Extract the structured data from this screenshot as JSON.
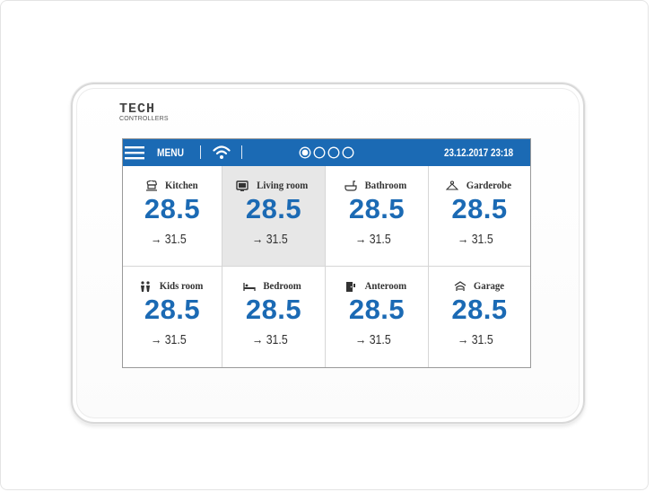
{
  "brand": {
    "word": "TECH",
    "sub": "CONTROLLERS"
  },
  "topbar": {
    "menu_label": "MENU",
    "date_time": "23.12.2017 23:18",
    "pages": {
      "count": 4,
      "active": 1
    }
  },
  "colors": {
    "accent": "#1b6ab4",
    "selected_tile": "#e7e7e7"
  },
  "rooms": [
    {
      "name": "Kitchen",
      "icon": "kitchen-icon",
      "temp": "28.5",
      "set": "→ 31.5",
      "selected": false
    },
    {
      "name": "Living room",
      "icon": "tv-icon",
      "temp": "28.5",
      "set": "→ 31.5",
      "selected": true
    },
    {
      "name": "Bathroom",
      "icon": "bathtub-icon",
      "temp": "28.5",
      "set": "→ 31.5",
      "selected": false
    },
    {
      "name": "Garderobe",
      "icon": "hanger-icon",
      "temp": "28.5",
      "set": "→ 31.5",
      "selected": false
    },
    {
      "name": "Kids room",
      "icon": "kids-icon",
      "temp": "28.5",
      "set": "→ 31.5",
      "selected": false
    },
    {
      "name": "Bedroom",
      "icon": "bed-icon",
      "temp": "28.5",
      "set": "→ 31.5",
      "selected": false
    },
    {
      "name": "Anteroom",
      "icon": "door-icon",
      "temp": "28.5",
      "set": "→ 31.5",
      "selected": false
    },
    {
      "name": "Garage",
      "icon": "garage-icon",
      "temp": "28.5",
      "set": "→ 31.5",
      "selected": false
    }
  ]
}
